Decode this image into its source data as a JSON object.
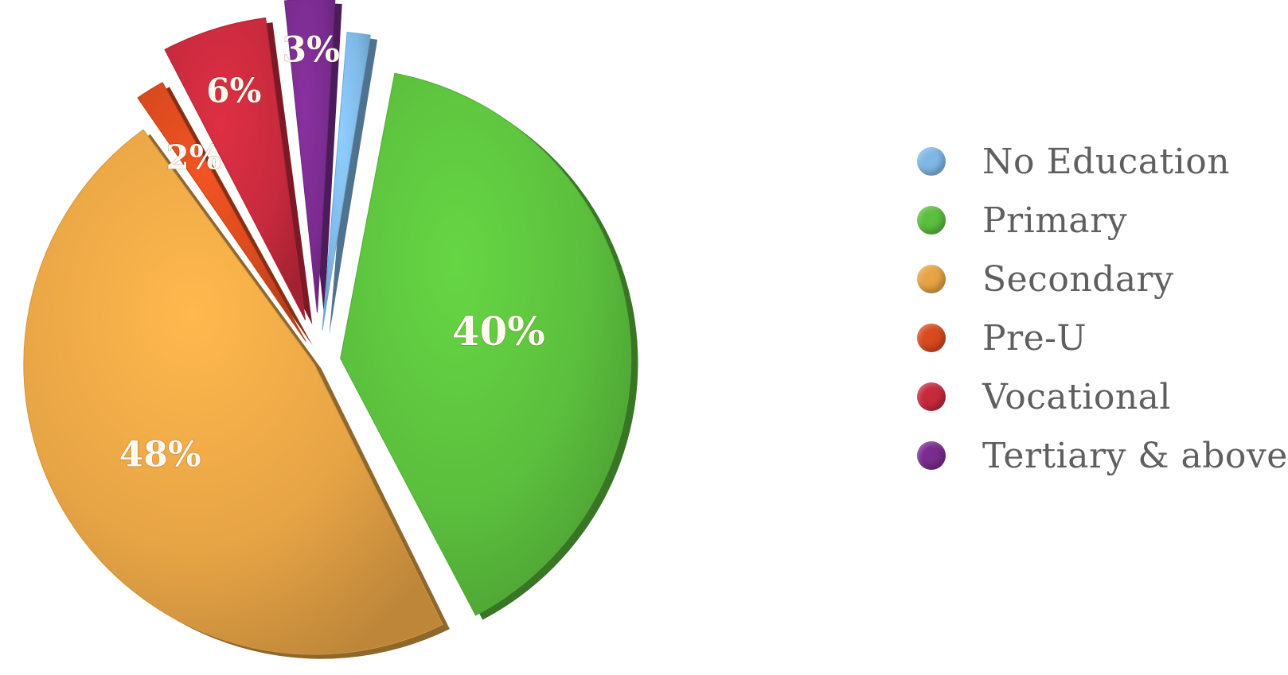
{
  "chart_data": {
    "type": "pie",
    "categories": [
      "No Education",
      "Primary",
      "Secondary",
      "Pre-U",
      "Vocational",
      "Tertiary & above"
    ],
    "values": [
      null,
      40,
      48,
      2,
      6,
      3
    ],
    "value_labels": [
      "",
      "40%",
      "48%",
      "2%",
      "6%",
      "3%"
    ],
    "exploded": true,
    "three_d": true,
    "legend_position": "right",
    "colors": [
      "#7fb8e6",
      "#5bbf3d",
      "#e7a445",
      "#d94a1f",
      "#c72a3d",
      "#7a2c8f"
    ]
  },
  "legend": {
    "items": [
      {
        "label": "No Education",
        "color": "#7fb8e6"
      },
      {
        "label": "Primary",
        "color": "#5bbf3d"
      },
      {
        "label": "Secondary",
        "color": "#e7a445"
      },
      {
        "label": "Pre-U",
        "color": "#d94a1f"
      },
      {
        "label": "Vocational",
        "color": "#c72a3d"
      },
      {
        "label": "Tertiary & above",
        "color": "#7a2c8f"
      }
    ]
  }
}
